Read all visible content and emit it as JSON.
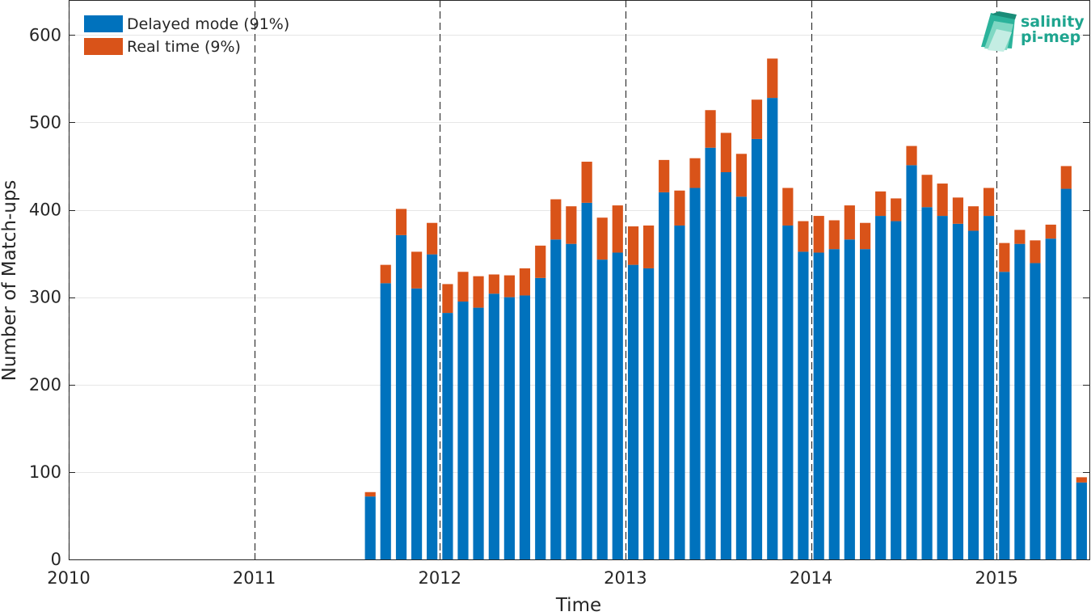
{
  "chart_data": {
    "type": "bar",
    "stacked": true,
    "xlabel": "Time",
    "ylabel": "Number of Match-ups",
    "xlim": [
      2010,
      2015.5
    ],
    "ylim": [
      0,
      640
    ],
    "xticks": [
      2010,
      2011,
      2012,
      2013,
      2014,
      2015
    ],
    "xtick_labels": [
      "2010",
      "2011",
      "2012",
      "2013",
      "2014",
      "2015"
    ],
    "yticks": [
      0,
      100,
      200,
      300,
      400,
      500,
      600
    ],
    "ytick_labels": [
      "0",
      "100",
      "200",
      "300",
      "400",
      "500",
      "600"
    ],
    "year_separators": [
      2010,
      2011,
      2012,
      2013,
      2014,
      2015
    ],
    "grid": "horizontal",
    "legend_position": "top-left",
    "bar_width_years": 0.0575,
    "x": [
      2011.625,
      2011.708,
      2011.792,
      2011.875,
      2011.958,
      2012.042,
      2012.125,
      2012.208,
      2012.292,
      2012.375,
      2012.458,
      2012.542,
      2012.625,
      2012.708,
      2012.792,
      2012.875,
      2012.958,
      2013.042,
      2013.125,
      2013.208,
      2013.292,
      2013.375,
      2013.458,
      2013.542,
      2013.625,
      2013.708,
      2013.792,
      2013.875,
      2013.958,
      2014.042,
      2014.125,
      2014.208,
      2014.292,
      2014.375,
      2014.458,
      2014.542,
      2014.625,
      2014.708,
      2014.792,
      2014.875,
      2014.958,
      2015.042,
      2015.125,
      2015.208,
      2015.292,
      2015.375,
      2015.458
    ],
    "series": [
      {
        "name": "Delayed mode (91%)",
        "color": "#0072BD",
        "values": [
          72,
          316,
          371,
          310,
          349,
          282,
          295,
          288,
          304,
          300,
          302,
          322,
          366,
          361,
          408,
          343,
          351,
          337,
          333,
          420,
          382,
          425,
          471,
          443,
          415,
          481,
          528,
          382,
          352,
          351,
          355,
          366,
          355,
          393,
          387,
          451,
          403,
          393,
          384,
          376,
          393,
          329,
          361,
          339,
          367,
          424,
          88
        ]
      },
      {
        "name": "Real time (9%)",
        "color": "#D95319",
        "values": [
          5,
          21,
          30,
          42,
          36,
          33,
          34,
          36,
          22,
          25,
          31,
          37,
          46,
          43,
          47,
          48,
          54,
          44,
          49,
          37,
          40,
          34,
          43,
          45,
          49,
          45,
          45,
          43,
          35,
          42,
          33,
          39,
          30,
          28,
          26,
          22,
          37,
          37,
          30,
          28,
          32,
          33,
          16,
          26,
          16,
          26,
          6
        ]
      }
    ]
  },
  "logo": {
    "line1": "salinity",
    "line2": "pi-mep",
    "color": "#1fa58f"
  }
}
